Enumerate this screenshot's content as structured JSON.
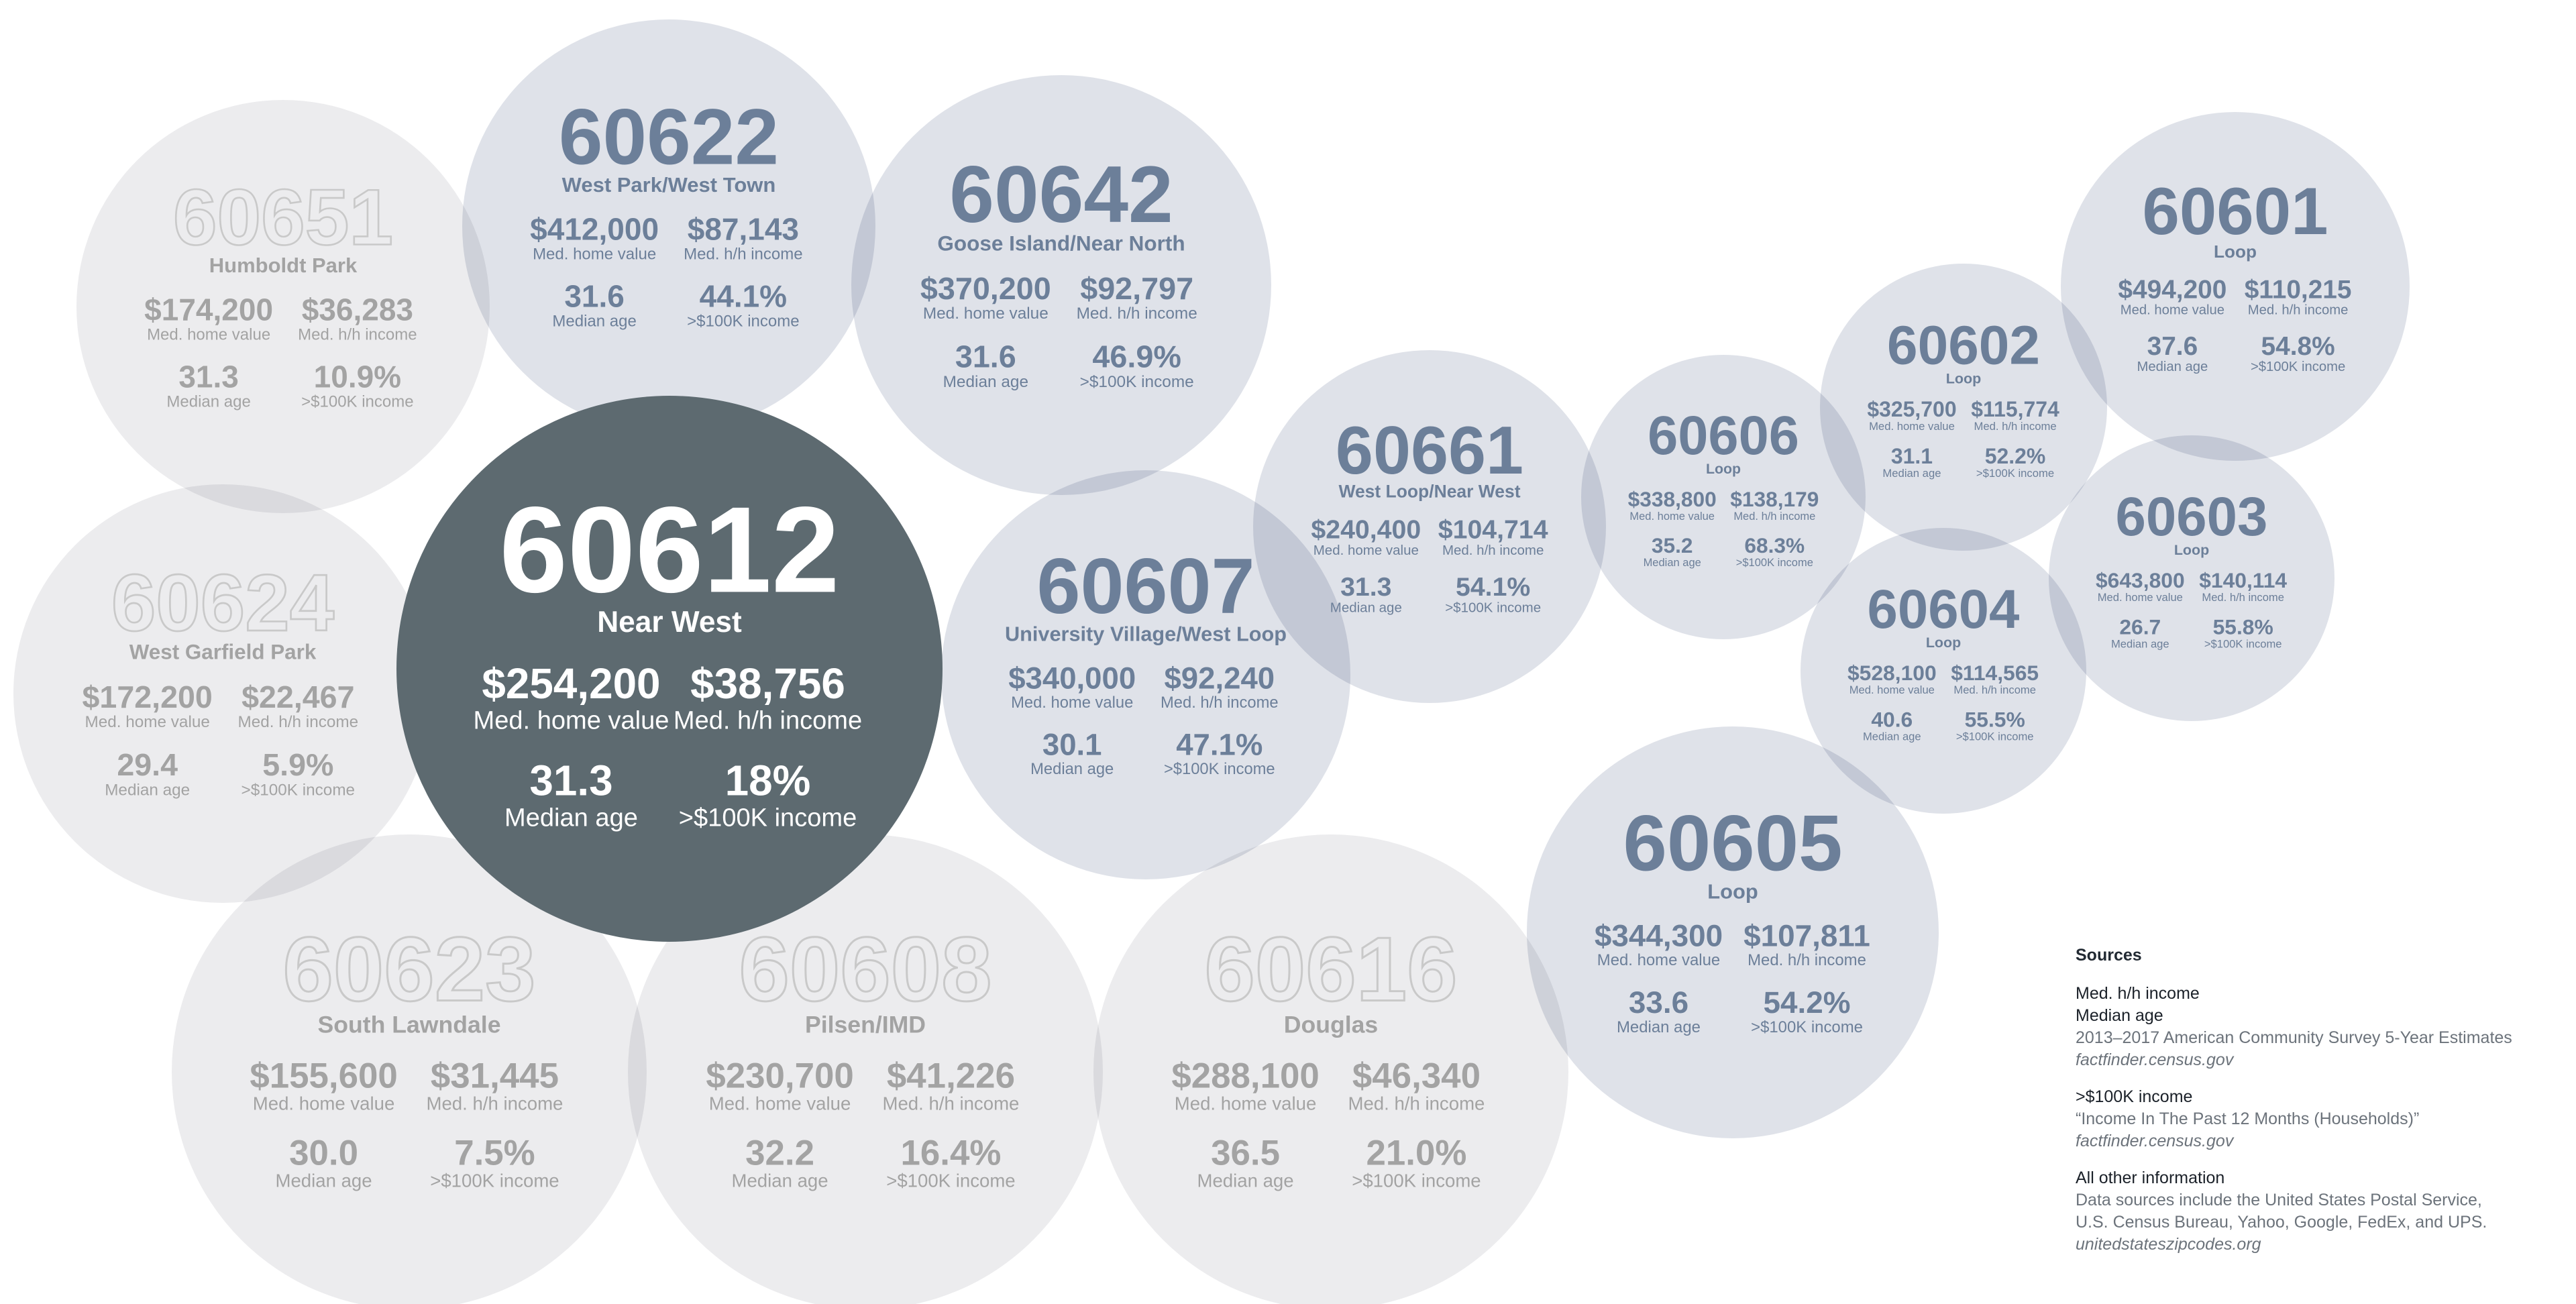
{
  "colors": {
    "highlight_fill": "#5d6a70",
    "blue_fill": "#dfe2e9",
    "gray_fill": "#ececee",
    "blue_text": "#6c7f99",
    "gray_text": "#a3a3a3",
    "highlight_text": "#ffffff",
    "outline_code": "#c9c9c9"
  },
  "stat_labels": {
    "home": "Med. home value",
    "income": "Med. h/h income",
    "age": "Median age",
    "pct": ">$100K income"
  },
  "zip_bubbles": [
    {
      "zip": "60651",
      "name": "Humboldt Park",
      "home_value": "$174,200",
      "hh_income": "$36,283",
      "median_age": "31.3",
      "pct_100k": "10.9%",
      "style": "gray-outline"
    },
    {
      "zip": "60622",
      "name": "West Park/West Town",
      "home_value": "$412,000",
      "hh_income": "$87,143",
      "median_age": "31.6",
      "pct_100k": "44.1%",
      "style": "blue"
    },
    {
      "zip": "60642",
      "name": "Goose Island/Near North",
      "home_value": "$370,200",
      "hh_income": "$92,797",
      "median_age": "31.6",
      "pct_100k": "46.9%",
      "style": "blue"
    },
    {
      "zip": "60624",
      "name": "West Garfield Park",
      "home_value": "$172,200",
      "hh_income": "$22,467",
      "median_age": "29.4",
      "pct_100k": "5.9%",
      "style": "gray-outline"
    },
    {
      "zip": "60623",
      "name": "South Lawndale",
      "home_value": "$155,600",
      "hh_income": "$31,445",
      "median_age": "30.0",
      "pct_100k": "7.5%",
      "style": "gray-outline"
    },
    {
      "zip": "60608",
      "name": "Pilsen/IMD",
      "home_value": "$230,700",
      "hh_income": "$41,226",
      "median_age": "32.2",
      "pct_100k": "16.4%",
      "style": "gray-outline"
    },
    {
      "zip": "60616",
      "name": "Douglas",
      "home_value": "$288,100",
      "hh_income": "$46,340",
      "median_age": "36.5",
      "pct_100k": "21.0%",
      "style": "gray-outline"
    },
    {
      "zip": "60607",
      "name": "University Village/West Loop",
      "home_value": "$340,000",
      "hh_income": "$92,240",
      "median_age": "30.1",
      "pct_100k": "47.1%",
      "style": "blue"
    },
    {
      "zip": "60661",
      "name": "West Loop/Near West",
      "home_value": "$240,400",
      "hh_income": "$104,714",
      "median_age": "31.3",
      "pct_100k": "54.1%",
      "style": "blue"
    },
    {
      "zip": "60606",
      "name": "Loop",
      "home_value": "$338,800",
      "hh_income": "$138,179",
      "median_age": "35.2",
      "pct_100k": "68.3%",
      "style": "blue"
    },
    {
      "zip": "60602",
      "name": "Loop",
      "home_value": "$325,700",
      "hh_income": "$115,774",
      "median_age": "31.1",
      "pct_100k": "52.2%",
      "style": "blue"
    },
    {
      "zip": "60601",
      "name": "Loop",
      "home_value": "$494,200",
      "hh_income": "$110,215",
      "median_age": "37.6",
      "pct_100k": "54.8%",
      "style": "blue"
    },
    {
      "zip": "60603",
      "name": "Loop",
      "home_value": "$643,800",
      "hh_income": "$140,114",
      "median_age": "26.7",
      "pct_100k": "55.8%",
      "style": "blue"
    },
    {
      "zip": "60604",
      "name": "Loop",
      "home_value": "$528,100",
      "hh_income": "$114,565",
      "median_age": "40.6",
      "pct_100k": "55.5%",
      "style": "blue"
    },
    {
      "zip": "60605",
      "name": "Loop",
      "home_value": "$344,300",
      "hh_income": "$107,811",
      "median_age": "33.6",
      "pct_100k": "54.2%",
      "style": "blue"
    },
    {
      "zip": "60612",
      "name": "Near West",
      "home_value": "$254,200",
      "hh_income": "$38,756",
      "median_age": "31.3",
      "pct_100k": "18%",
      "style": "highlight"
    }
  ],
  "sources": {
    "title": "Sources",
    "groups": [
      {
        "heading_lines": [
          "Med. h/h income",
          "Median age"
        ],
        "description_lines": [
          "2013–2017 American Community Survey 5-Year Estimates"
        ],
        "link": "factfinder.census.gov"
      },
      {
        "heading_lines": [
          ">$100K income"
        ],
        "description_lines": [
          "“Income In The Past 12 Months (Households)”"
        ],
        "link": "factfinder.census.gov"
      },
      {
        "heading_lines": [
          "All other information"
        ],
        "description_lines": [
          "Data sources include the United States Postal Service,",
          "U.S. Census Bureau, Yahoo, Google, FedEx, and UPS."
        ],
        "link": "unitedstateszipcodes.org"
      }
    ]
  }
}
